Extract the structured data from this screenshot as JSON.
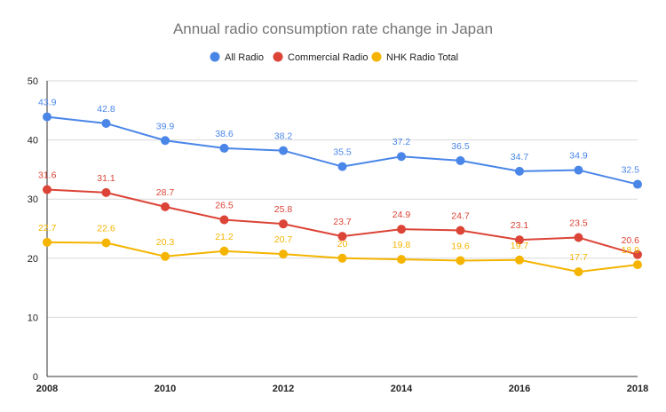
{
  "chart_data": {
    "type": "line",
    "title": "Annual radio consumption rate change in Japan",
    "xlabel": "",
    "ylabel": "",
    "x": [
      2008,
      2009,
      2010,
      2011,
      2012,
      2013,
      2014,
      2015,
      2016,
      2017,
      2018
    ],
    "xticks": [
      "2008",
      "2010",
      "2012",
      "2014",
      "2016",
      "2018"
    ],
    "yticks": [
      "0",
      "10",
      "20",
      "30",
      "40",
      "50"
    ],
    "ylim": [
      0,
      50
    ],
    "xlim": [
      2008,
      2018
    ],
    "grid": true,
    "legend_position": "top",
    "series": [
      {
        "name": "All Radio",
        "color": "#4a86e8",
        "values": [
          43.9,
          42.8,
          39.9,
          38.6,
          38.2,
          35.5,
          37.2,
          36.5,
          34.7,
          34.9,
          32.5
        ],
        "labels": [
          "43.9",
          "42.8",
          "39.9",
          "38.6",
          "38.2",
          "35.5",
          "37.2",
          "36.5",
          "34.7",
          "34.9",
          "32.5"
        ]
      },
      {
        "name": "Commercial Radio",
        "color": "#db4437",
        "values": [
          31.6,
          31.1,
          28.7,
          26.5,
          25.8,
          23.7,
          24.9,
          24.7,
          23.1,
          23.5,
          20.6
        ],
        "labels": [
          "31.6",
          "31.1",
          "28.7",
          "26.5",
          "25.8",
          "23.7",
          "24.9",
          "24.7",
          "23.1",
          "23.5",
          "20.6"
        ]
      },
      {
        "name": "NHK Radio Total",
        "color": "#f4b400",
        "values": [
          22.7,
          22.6,
          20.3,
          21.2,
          20.7,
          20,
          19.8,
          19.6,
          19.7,
          17.7,
          18.9
        ],
        "labels": [
          "22.7",
          "22.6",
          "20.3",
          "21.2",
          "20.7",
          "20",
          "19.8",
          "19.6",
          "19.7",
          "17.7",
          "18.9"
        ]
      }
    ]
  }
}
